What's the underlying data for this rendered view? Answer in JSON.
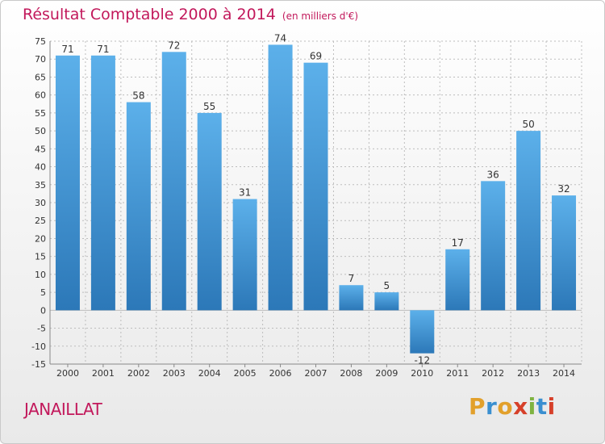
{
  "header": {
    "title": "Résultat Comptable 2000 à 2014",
    "subtitle": "(en milliers d'€)"
  },
  "footer": {
    "town": "JANAILLAT",
    "logo": "Proxiti"
  },
  "colors": {
    "title": "#c2185b",
    "bar_top": "#5cb0ea",
    "bar_bottom": "#2c78b8",
    "grid": "#bdbdbd"
  },
  "chart_data": {
    "type": "bar",
    "title": "Résultat Comptable 2000 à 2014",
    "unit": "(en milliers d'€)",
    "xlabel": "",
    "ylabel": "",
    "categories": [
      "2000",
      "2001",
      "2002",
      "2003",
      "2004",
      "2005",
      "2006",
      "2007",
      "2008",
      "2009",
      "2010",
      "2011",
      "2012",
      "2013",
      "2014"
    ],
    "values": [
      71,
      71,
      58,
      72,
      55,
      31,
      74,
      69,
      7,
      5,
      -12,
      17,
      36,
      50,
      32
    ],
    "ylim": [
      -15,
      75
    ],
    "yticks": [
      -15,
      -10,
      -5,
      0,
      5,
      10,
      15,
      20,
      25,
      30,
      35,
      40,
      45,
      50,
      55,
      60,
      65,
      70,
      75
    ],
    "grid": true,
    "legend": "none"
  }
}
